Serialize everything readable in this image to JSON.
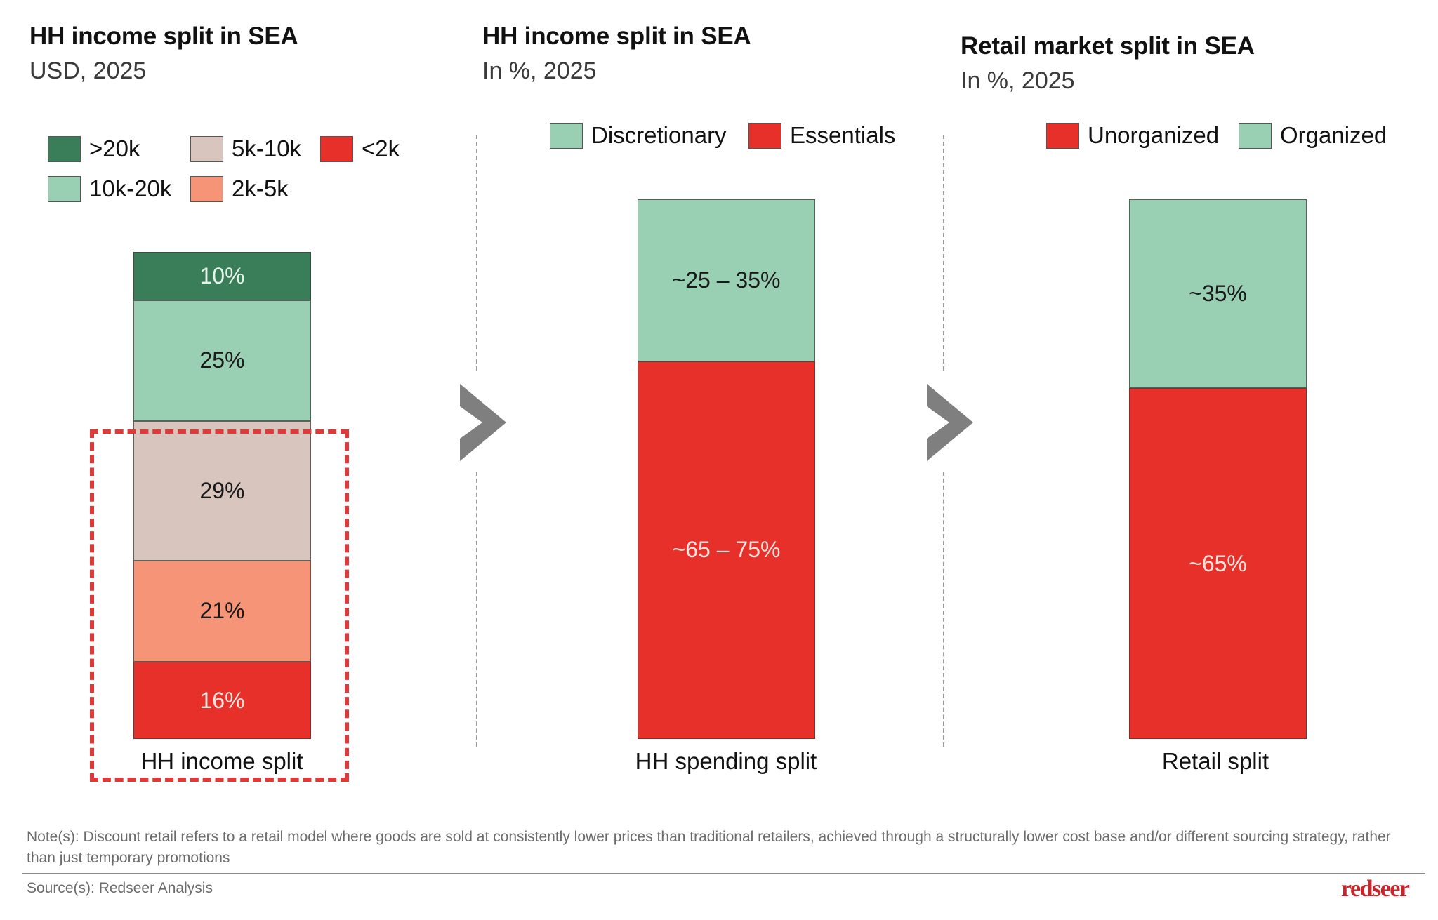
{
  "panels": [
    {
      "title": "HH income split in SEA",
      "subtitle": "USD, 2025",
      "legend": [
        {
          "label": ">20k",
          "color": "#3a7d59"
        },
        {
          "label": "5k-10k",
          "color": "#d8c5bd"
        },
        {
          "label": "<2k",
          "color": "#e8302a"
        },
        {
          "label": "10k-20k",
          "color": "#99cfb3"
        },
        {
          "label": "2k-5k",
          "color": "#f59476"
        }
      ],
      "caption": "HH income split"
    },
    {
      "title": "HH income split in SEA",
      "subtitle": "In %, 2025",
      "legend": [
        {
          "label": "Discretionary",
          "color": "#99cfb3"
        },
        {
          "label": "Essentials",
          "color": "#e8302a"
        }
      ],
      "caption": "HH spending split"
    },
    {
      "title": "Retail market split in SEA",
      "subtitle": "In %, 2025",
      "legend": [
        {
          "label": "Unorganized",
          "color": "#e8302a"
        },
        {
          "label": "Organized",
          "color": "#99cfb3"
        }
      ],
      "caption": "Retail split"
    }
  ],
  "chart_data": [
    {
      "type": "bar",
      "stacked": true,
      "title": "HH income split in SEA",
      "subtitle": "USD, 2025",
      "categories": [
        "HH income split"
      ],
      "series": [
        {
          "name": "<2k",
          "values": [
            16
          ],
          "label": "16%",
          "color": "#e8302a",
          "text_color": "#fbe3dd"
        },
        {
          "name": "2k-5k",
          "values": [
            21
          ],
          "label": "21%",
          "color": "#f59476",
          "text_color": "#1a1a1a"
        },
        {
          "name": "5k-10k",
          "values": [
            29
          ],
          "label": "29%",
          "color": "#d8c5bd",
          "text_color": "#1a1a1a"
        },
        {
          "name": "10k-20k",
          "values": [
            25
          ],
          "label": "25%",
          "color": "#99cfb3",
          "text_color": "#1a1a1a"
        },
        {
          "name": ">20k",
          "values": [
            10
          ],
          "label": "10%",
          "color": "#3a7d59",
          "text_color": "#e6f4ec"
        }
      ],
      "ylim": [
        0,
        100
      ],
      "unit": "%",
      "highlight": "dashed box around <2k, 2k-5k, 5k-10k segments",
      "legend_position": "top-left",
      "grid": false
    },
    {
      "type": "bar",
      "stacked": true,
      "title": "HH income split in SEA",
      "subtitle": "In %, 2025",
      "categories": [
        "HH spending split"
      ],
      "series": [
        {
          "name": "Essentials",
          "values": [
            70
          ],
          "range": [
            65,
            75
          ],
          "label": "~65 – 75%",
          "color": "#e8302a",
          "text_color": "#fbe3dd"
        },
        {
          "name": "Discretionary",
          "values": [
            30
          ],
          "range": [
            25,
            35
          ],
          "label": "~25 – 35%",
          "color": "#99cfb3",
          "text_color": "#1a1a1a"
        }
      ],
      "ylim": [
        0,
        100
      ],
      "unit": "%",
      "legend_position": "top",
      "grid": false
    },
    {
      "type": "bar",
      "stacked": true,
      "title": "Retail market split in SEA",
      "subtitle": "In %, 2025",
      "categories": [
        "Retail split"
      ],
      "series": [
        {
          "name": "Unorganized",
          "values": [
            65
          ],
          "label": "~65%",
          "color": "#e8302a",
          "text_color": "#fbe3dd"
        },
        {
          "name": "Organized",
          "values": [
            35
          ],
          "label": "~35%",
          "color": "#99cfb3",
          "text_color": "#1a1a1a"
        }
      ],
      "ylim": [
        0,
        100
      ],
      "unit": "%",
      "legend_position": "top",
      "grid": false
    }
  ],
  "footer": {
    "note": "Note(s): Discount retail refers to a retail model where goods are sold at consistently lower prices than traditional retailers, achieved through a structurally lower cost base and/or different sourcing strategy, rather than just temporary promotions",
    "source": "Source(s): Redseer Analysis",
    "logo": "redseer"
  },
  "icons": {
    "flow_arrow": "chevron-right-icon"
  }
}
